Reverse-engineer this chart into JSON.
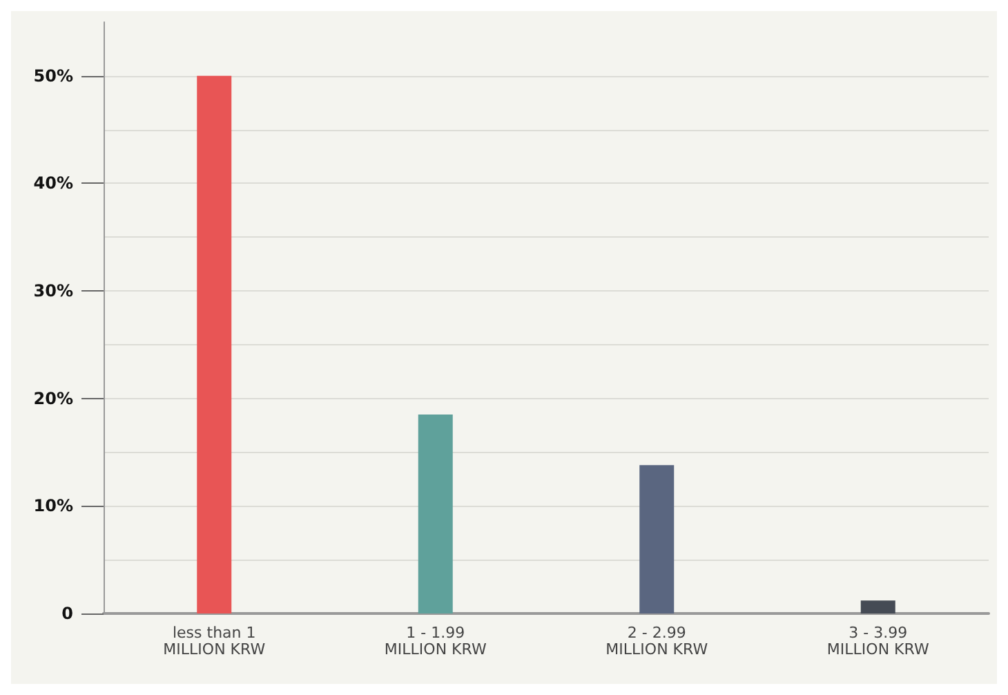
{
  "chart_data": {
    "type": "bar",
    "categories": [
      "less than 1\nMILLION KRW",
      "1 - 1.99\nMILLION KRW",
      "2 - 2.99\nMILLION KRW",
      "3 - 3.99\nMILLION KRW"
    ],
    "values": [
      50,
      18.5,
      13.8,
      1.2
    ],
    "colors": [
      "#e85555",
      "#5fa19b",
      "#5a6680",
      "#454b55"
    ],
    "ylim": [
      0,
      55
    ],
    "yticks": [
      {
        "value": 0,
        "label": "0"
      },
      {
        "value": 5,
        "label": null
      },
      {
        "value": 10,
        "label": "10%"
      },
      {
        "value": 15,
        "label": null
      },
      {
        "value": 20,
        "label": "20%"
      },
      {
        "value": 25,
        "label": null
      },
      {
        "value": 30,
        "label": "30%"
      },
      {
        "value": 35,
        "label": null
      },
      {
        "value": 40,
        "label": "40%"
      },
      {
        "value": 45,
        "label": null
      },
      {
        "value": 50,
        "label": "50%"
      }
    ],
    "grid": "y"
  }
}
